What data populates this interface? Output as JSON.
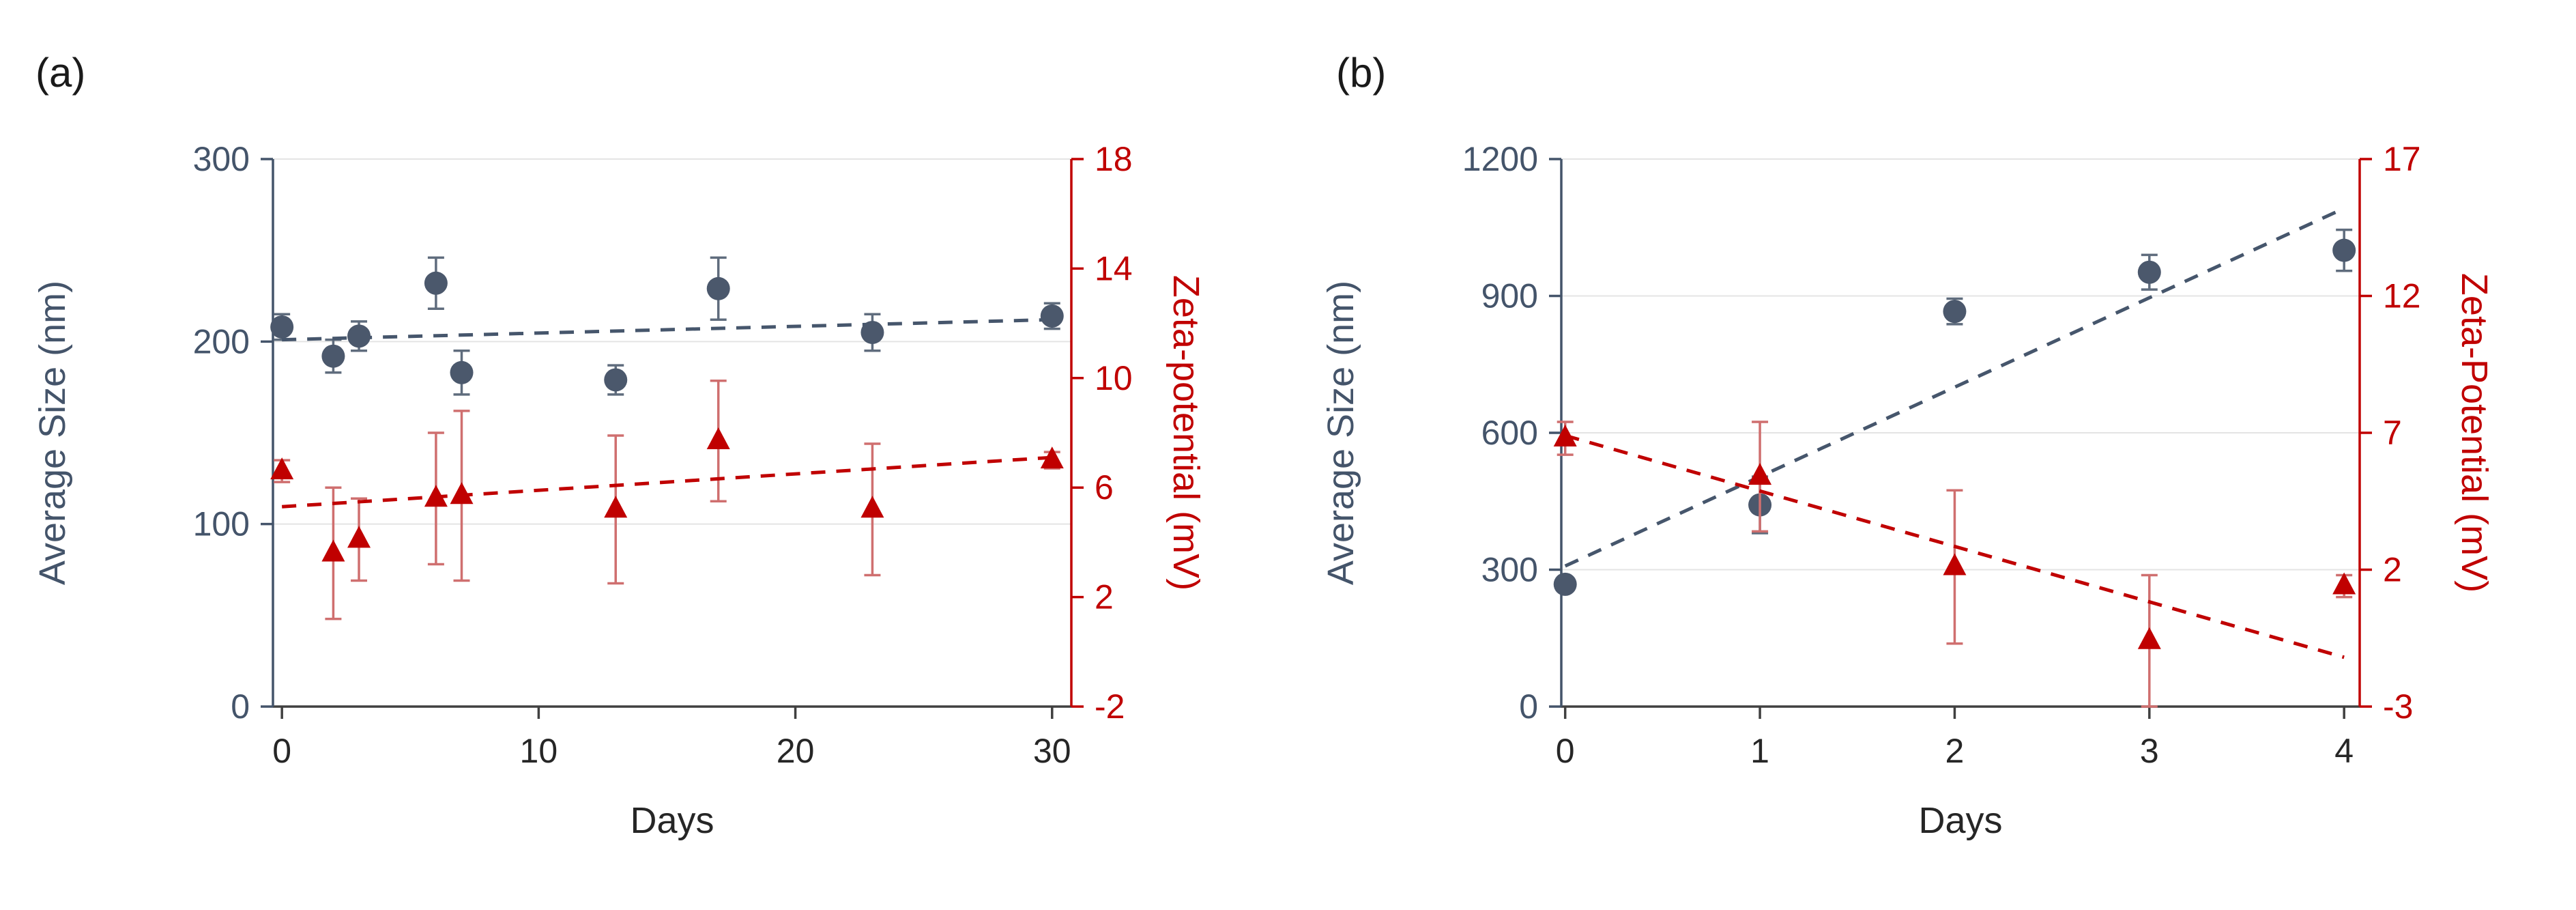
{
  "figure": {
    "background": "#ffffff"
  },
  "chart_data": [
    {
      "type": "scatter",
      "panel_label": "(a)",
      "xlabel": "Days",
      "xlim": [
        -0.35,
        30.75
      ],
      "x_ticks": [
        0,
        10,
        20,
        30
      ],
      "grid": true,
      "legend": "none",
      "axes": {
        "left": {
          "label": "Average Size (nm)",
          "lim": [
            0,
            300
          ],
          "ticks": [
            0,
            100,
            200,
            300
          ],
          "color": "#44546a"
        },
        "right": {
          "label": "Zeta-potential (mV)",
          "lim": [
            -2,
            18
          ],
          "ticks": [
            -2,
            2,
            6,
            10,
            14,
            18
          ],
          "color": "#c00000"
        },
        "bottom": {
          "color": "#404040",
          "text_color": "#262626"
        }
      },
      "series": [
        {
          "name": "average-size",
          "axis": "left",
          "marker": "circle",
          "color": "#4b586c",
          "error_color": "#5f6c7d",
          "x": [
            0,
            2,
            3,
            6,
            7,
            13,
            17,
            23,
            30
          ],
          "y": [
            208,
            192,
            203,
            232,
            183,
            179,
            229,
            205,
            214
          ],
          "err": [
            7,
            9,
            8,
            14,
            12,
            8,
            17,
            10,
            7
          ],
          "trend": {
            "x": [
              0,
              30
            ],
            "y": [
              201,
              212
            ],
            "color": "#46566c"
          }
        },
        {
          "name": "zeta-potential",
          "axis": "right",
          "marker": "triangle",
          "color": "#c00000",
          "error_color": "#cf6f6f",
          "x": [
            0,
            2,
            3,
            6,
            7,
            13,
            17,
            23,
            30
          ],
          "y": [
            6.6,
            3.6,
            4.1,
            5.6,
            5.7,
            5.2,
            7.7,
            5.2,
            7.0
          ],
          "err": [
            0.4,
            2.4,
            1.5,
            2.4,
            3.1,
            2.7,
            2.2,
            2.4,
            0.3
          ],
          "trend": {
            "x": [
              0,
              30
            ],
            "y": [
              5.3,
              7.1
            ],
            "color": "#c00000"
          }
        }
      ]
    },
    {
      "type": "scatter",
      "panel_label": "(b)",
      "xlabel": "Days",
      "xlim": [
        -0.02,
        4.08
      ],
      "x_ticks": [
        0,
        1,
        2,
        3,
        4
      ],
      "grid": true,
      "legend": "none",
      "axes": {
        "left": {
          "label": "Average Size (nm)",
          "lim": [
            0,
            1200
          ],
          "ticks": [
            0,
            300,
            600,
            900,
            1200
          ],
          "color": "#44546a"
        },
        "right": {
          "label": "Zeta-Potential (mV)",
          "lim": [
            -3,
            17
          ],
          "ticks": [
            -3,
            2,
            7,
            12,
            17
          ],
          "color": "#c00000"
        },
        "bottom": {
          "color": "#404040",
          "text_color": "#262626"
        }
      },
      "series": [
        {
          "name": "average-size",
          "axis": "left",
          "marker": "circle",
          "color": "#4b586c",
          "error_color": "#5f6c7d",
          "x": [
            0,
            1,
            2,
            3,
            4
          ],
          "y": [
            268,
            442,
            866,
            952,
            1000
          ],
          "err": [
            15,
            62,
            28,
            38,
            45
          ],
          "trend": {
            "x": [
              0,
              4
            ],
            "y": [
              308,
              1092
            ],
            "color": "#46566c"
          }
        },
        {
          "name": "zeta-potential",
          "axis": "right",
          "marker": "triangle",
          "color": "#c00000",
          "error_color": "#cf6f6f",
          "x": [
            0,
            1,
            2,
            3,
            4
          ],
          "y": [
            6.8,
            5.4,
            2.1,
            -0.6,
            1.4
          ],
          "err": [
            0.6,
            2.0,
            2.8,
            2.4,
            0.4
          ],
          "trend": {
            "x": [
              0,
              4
            ],
            "y": [
              6.9,
              -1.2
            ],
            "color": "#c00000"
          }
        }
      ]
    }
  ]
}
